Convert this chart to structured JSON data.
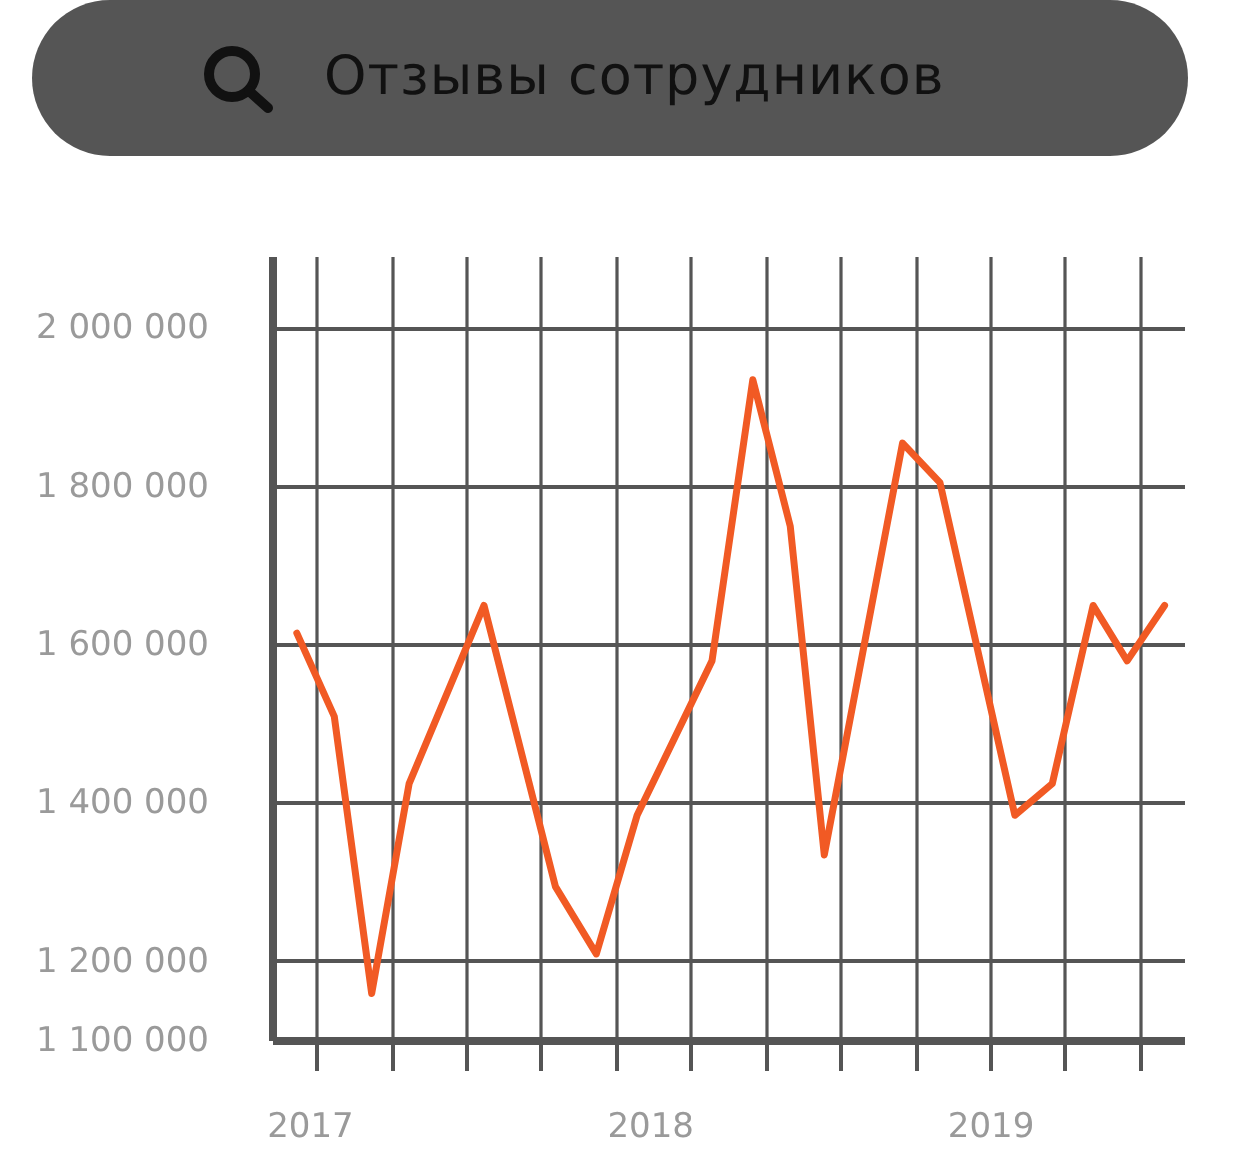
{
  "chart_data": {
    "type": "line",
    "title": "Отзывы сотрудников",
    "x": [
      2016.96,
      2017.07,
      2017.18,
      2017.29,
      2017.51,
      2017.72,
      2017.84,
      2017.96,
      2018.18,
      2018.3,
      2018.41,
      2018.51,
      2018.74,
      2018.85,
      2019.07,
      2019.18,
      2019.3,
      2019.4,
      2019.51
    ],
    "values": [
      1615000,
      1510000,
      1160000,
      1425000,
      1650000,
      1295000,
      1210000,
      1385000,
      1580000,
      1935000,
      1750000,
      1335000,
      1855000,
      1805000,
      1385000,
      1425000,
      1650000,
      1580000,
      1650000
    ],
    "color": "#f15a24",
    "xlim": [
      2016.89,
      2019.57
    ],
    "xticks": [
      2017,
      {
        "value": 2017.02,
        "label": null
      },
      {
        "value": 2017.24,
        "label": null
      },
      {
        "value": 2017.46,
        "label": null
      },
      {
        "value": 2017.68,
        "label": null
      },
      {
        "value": 2017.9,
        "label": null
      },
      2018,
      {
        "value": 2018.12,
        "label": null
      },
      {
        "value": 2018.34,
        "label": null
      },
      {
        "value": 2018.56,
        "label": null
      },
      {
        "value": 2018.78,
        "label": null
      },
      2019,
      {
        "value": 2019,
        "label": null
      },
      {
        "value": 2019.22,
        "label": null
      },
      {
        "value": 2019.44,
        "label": null
      }
    ],
    "ylim": [
      1100000,
      2090000
    ],
    "yticks": [
      {
        "value": 1100000,
        "label": "1 100 000"
      },
      {
        "value": 1200000,
        "label": "1 200 000"
      },
      {
        "value": 1400000,
        "label": "1 400 000"
      },
      {
        "value": 1600000,
        "label": "1 600 000"
      },
      {
        "value": 1800000,
        "label": "1 800 000"
      },
      {
        "value": 2000000,
        "label": "2 000 000"
      }
    ],
    "grid": true
  }
}
